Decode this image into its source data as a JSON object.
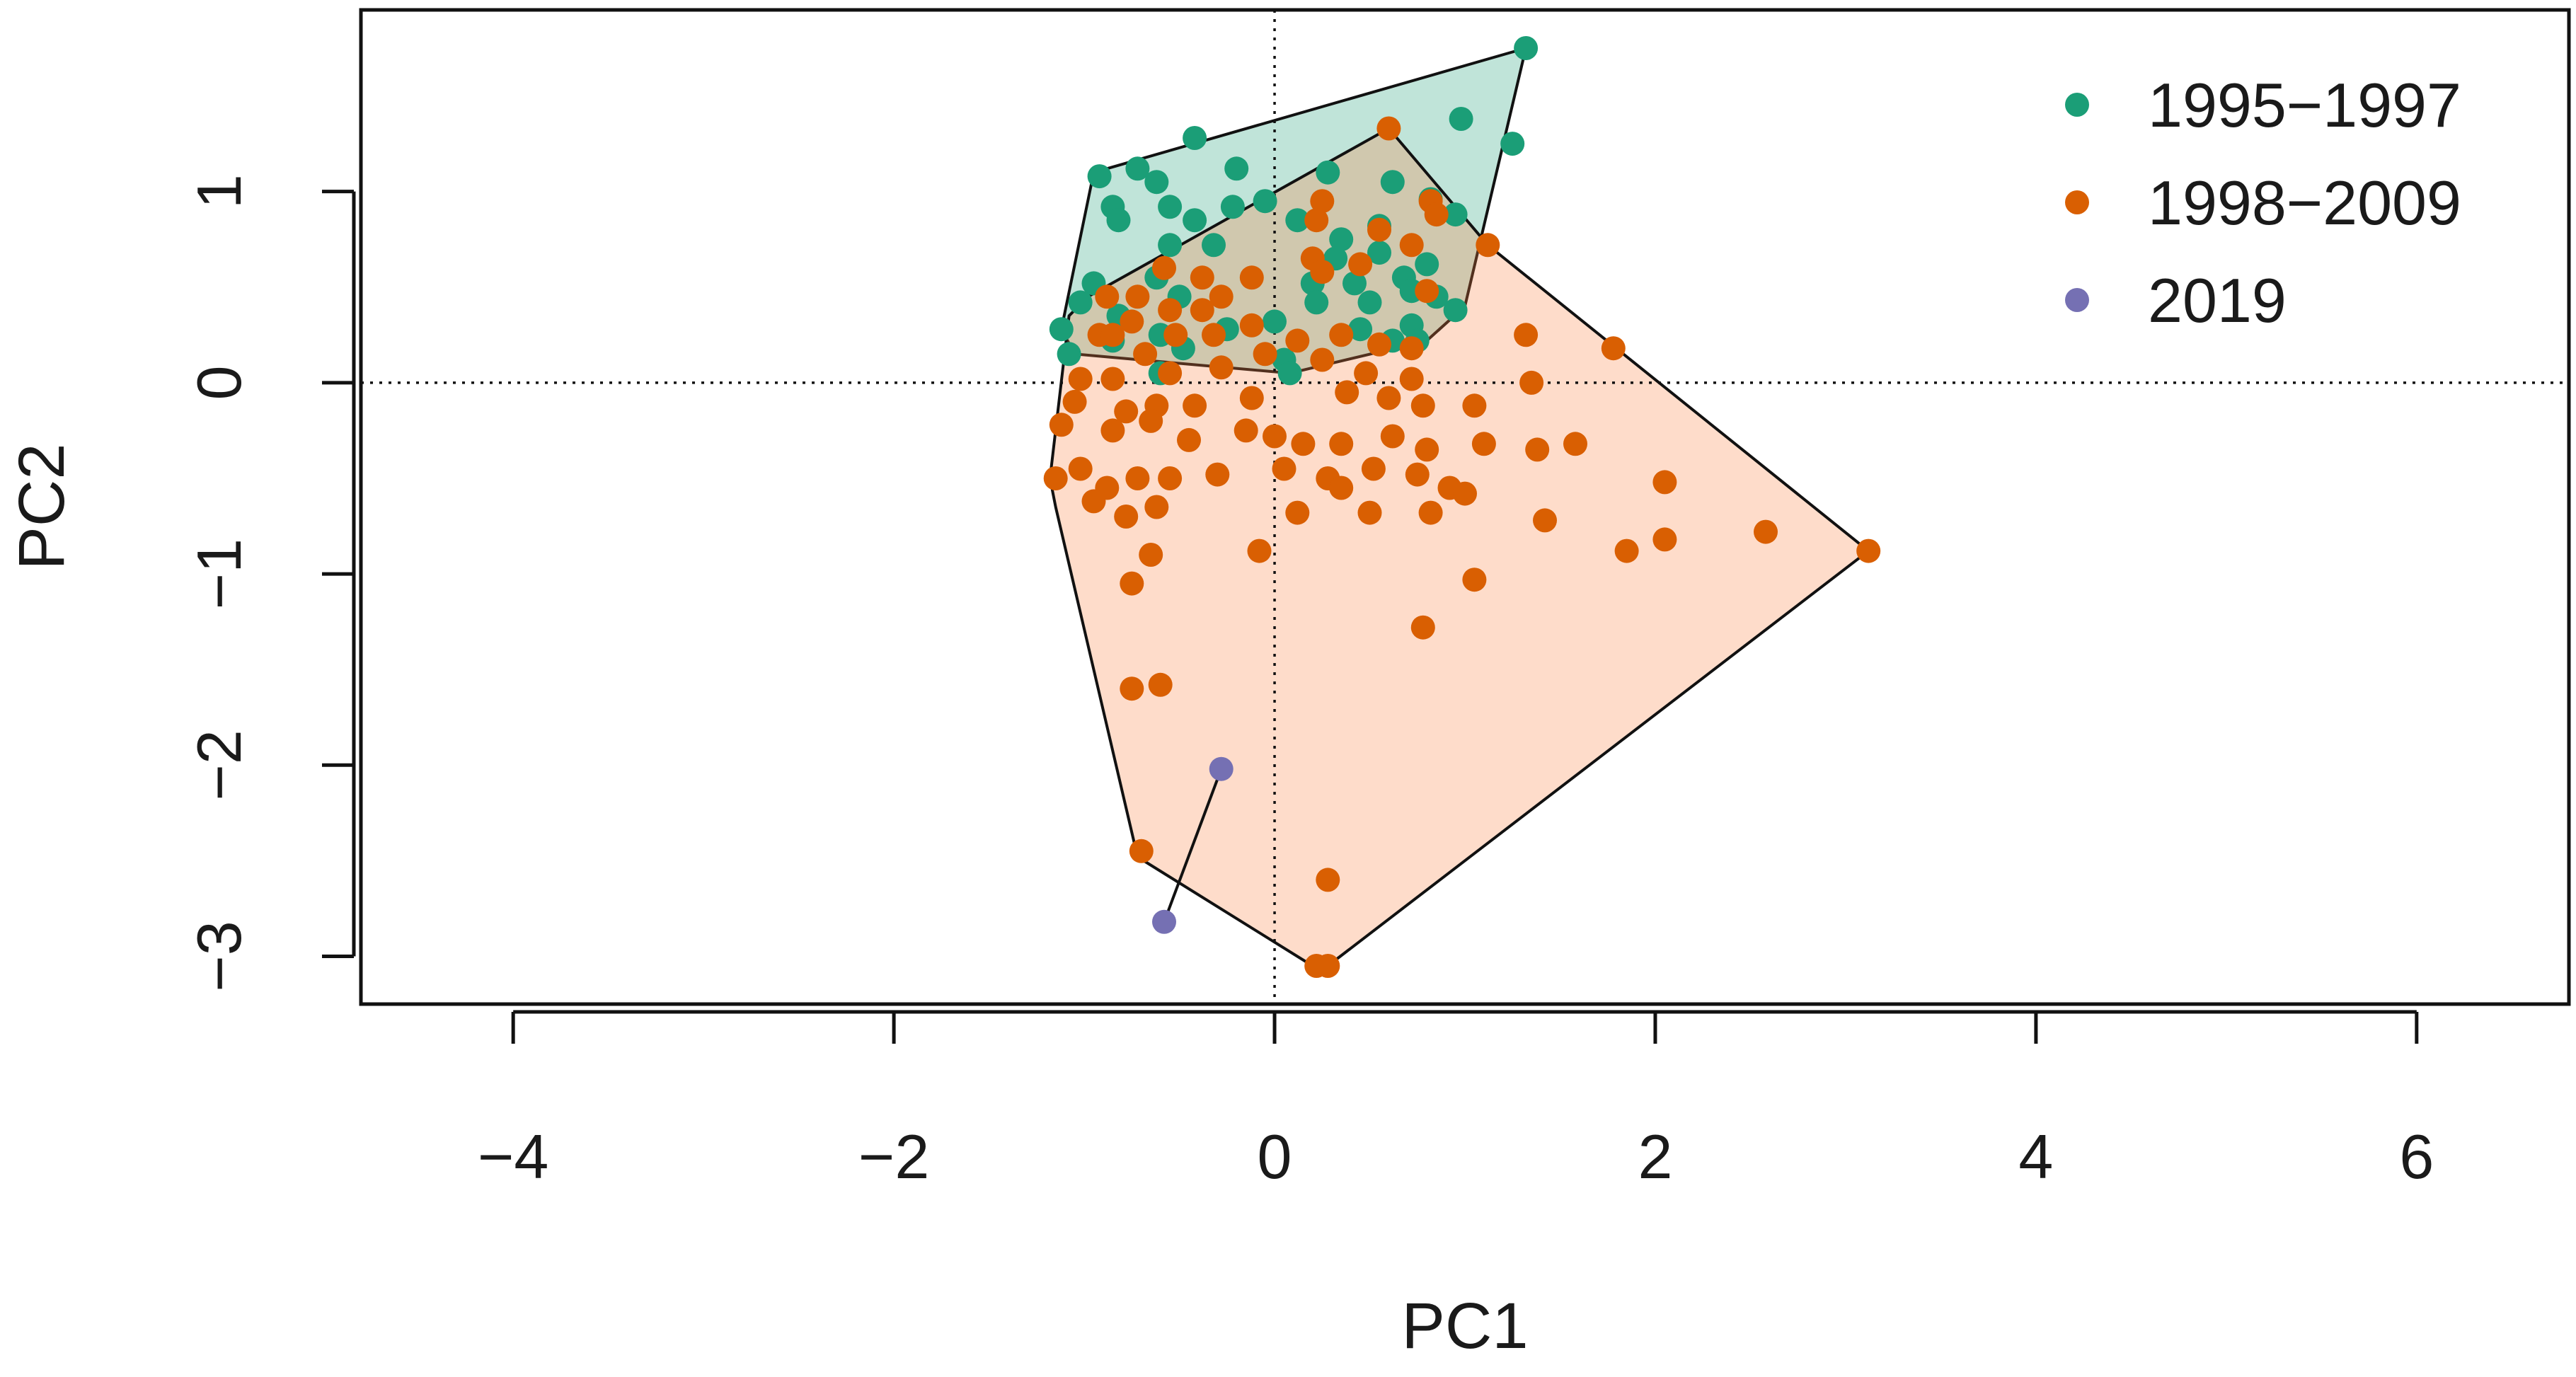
{
  "chart_data": {
    "type": "scatter",
    "title": "",
    "xlabel": "PC1",
    "ylabel": "PC2",
    "xlim": [
      -4.8,
      6.8
    ],
    "ylim": [
      -3.25,
      1.95
    ],
    "xticks": [
      -4,
      -2,
      0,
      2,
      4,
      6
    ],
    "yticks": [
      -3,
      -2,
      -1,
      0,
      1
    ],
    "x_tick_labels": [
      "−4",
      "−2",
      "0",
      "2",
      "4",
      "6"
    ],
    "y_tick_labels": [
      "−3",
      "−2",
      "−1",
      "0",
      "1"
    ],
    "reference_lines": {
      "x": 0,
      "y": 0
    },
    "legend_position": "top-right",
    "series": [
      {
        "name": "1995−1997",
        "color": "#1B9E77",
        "hull_fill": "rgba(27,158,119,0.28)",
        "points": [
          [
            1.32,
            1.75
          ],
          [
            1.25,
            1.25
          ],
          [
            0.98,
            1.38
          ],
          [
            -0.42,
            1.28
          ],
          [
            -0.92,
            1.08
          ],
          [
            -0.72,
            1.12
          ],
          [
            -0.62,
            1.05
          ],
          [
            -0.2,
            1.12
          ],
          [
            0.28,
            1.1
          ],
          [
            0.62,
            1.05
          ],
          [
            -0.55,
            0.92
          ],
          [
            -0.85,
            0.92
          ],
          [
            -0.82,
            0.85
          ],
          [
            -0.42,
            0.85
          ],
          [
            -0.22,
            0.92
          ],
          [
            -0.05,
            0.95
          ],
          [
            0.12,
            0.85
          ],
          [
            0.35,
            0.75
          ],
          [
            0.55,
            0.82
          ],
          [
            0.82,
            0.96
          ],
          [
            0.95,
            0.88
          ],
          [
            -0.55,
            0.72
          ],
          [
            -0.32,
            0.72
          ],
          [
            0.32,
            0.65
          ],
          [
            0.55,
            0.68
          ],
          [
            0.8,
            0.62
          ],
          [
            -0.95,
            0.52
          ],
          [
            -0.62,
            0.55
          ],
          [
            -0.5,
            0.45
          ],
          [
            0.2,
            0.52
          ],
          [
            0.42,
            0.52
          ],
          [
            0.68,
            0.55
          ],
          [
            -1.12,
            0.28
          ],
          [
            -1.02,
            0.42
          ],
          [
            -0.82,
            0.35
          ],
          [
            -0.6,
            0.25
          ],
          [
            -0.25,
            0.28
          ],
          [
            0.0,
            0.32
          ],
          [
            0.22,
            0.42
          ],
          [
            0.5,
            0.42
          ],
          [
            0.72,
            0.48
          ],
          [
            0.85,
            0.45
          ],
          [
            0.95,
            0.38
          ],
          [
            -1.08,
            0.15
          ],
          [
            -0.85,
            0.22
          ],
          [
            -0.48,
            0.18
          ],
          [
            0.05,
            0.12
          ],
          [
            0.45,
            0.28
          ],
          [
            0.62,
            0.22
          ],
          [
            0.72,
            0.3
          ],
          [
            0.75,
            0.22
          ],
          [
            0.08,
            0.05
          ],
          [
            -0.6,
            0.05
          ]
        ],
        "hull": [
          [
            1.32,
            1.75
          ],
          [
            -0.95,
            1.1
          ],
          [
            -1.12,
            0.28
          ],
          [
            -1.05,
            0.15
          ],
          [
            0.08,
            0.05
          ],
          [
            0.8,
            0.22
          ],
          [
            1.0,
            0.4
          ],
          [
            1.32,
            1.75
          ]
        ]
      },
      {
        "name": "1998−2009",
        "color": "#D95F02",
        "hull_fill": "rgba(250,128,64,0.28)",
        "points": [
          [
            0.6,
            1.33
          ],
          [
            1.12,
            0.72
          ],
          [
            0.82,
            0.95
          ],
          [
            0.85,
            0.88
          ],
          [
            0.25,
            0.95
          ],
          [
            0.22,
            0.85
          ],
          [
            0.55,
            0.8
          ],
          [
            0.72,
            0.72
          ],
          [
            0.2,
            0.65
          ],
          [
            0.45,
            0.62
          ],
          [
            0.8,
            0.48
          ],
          [
            -0.58,
            0.6
          ],
          [
            -0.38,
            0.55
          ],
          [
            -0.12,
            0.55
          ],
          [
            0.25,
            0.58
          ],
          [
            -0.88,
            0.45
          ],
          [
            -0.72,
            0.45
          ],
          [
            -0.55,
            0.38
          ],
          [
            -0.38,
            0.38
          ],
          [
            -0.28,
            0.45
          ],
          [
            -0.75,
            0.32
          ],
          [
            -0.52,
            0.25
          ],
          [
            -0.32,
            0.25
          ],
          [
            -0.12,
            0.3
          ],
          [
            -0.92,
            0.25
          ],
          [
            -0.85,
            0.25
          ],
          [
            -0.68,
            0.15
          ],
          [
            -0.05,
            0.15
          ],
          [
            0.12,
            0.22
          ],
          [
            0.35,
            0.25
          ],
          [
            0.55,
            0.2
          ],
          [
            0.72,
            0.18
          ],
          [
            1.32,
            0.25
          ],
          [
            1.78,
            0.18
          ],
          [
            -1.02,
            0.02
          ],
          [
            -0.85,
            0.02
          ],
          [
            -0.55,
            0.05
          ],
          [
            -0.28,
            0.08
          ],
          [
            0.25,
            0.12
          ],
          [
            0.48,
            0.05
          ],
          [
            0.72,
            0.02
          ],
          [
            -1.05,
            -0.1
          ],
          [
            -0.78,
            -0.15
          ],
          [
            -0.62,
            -0.12
          ],
          [
            -0.42,
            -0.12
          ],
          [
            -0.12,
            -0.08
          ],
          [
            0.38,
            -0.05
          ],
          [
            0.6,
            -0.08
          ],
          [
            0.78,
            -0.12
          ],
          [
            1.05,
            -0.12
          ],
          [
            1.35,
            0.0
          ],
          [
            -1.12,
            -0.22
          ],
          [
            -0.85,
            -0.25
          ],
          [
            -0.65,
            -0.2
          ],
          [
            -0.45,
            -0.3
          ],
          [
            -0.15,
            -0.25
          ],
          [
            0.0,
            -0.28
          ],
          [
            0.15,
            -0.32
          ],
          [
            0.35,
            -0.32
          ],
          [
            0.62,
            -0.28
          ],
          [
            0.8,
            -0.35
          ],
          [
            1.1,
            -0.32
          ],
          [
            1.58,
            -0.32
          ],
          [
            1.38,
            -0.35
          ],
          [
            -1.15,
            -0.5
          ],
          [
            -1.02,
            -0.45
          ],
          [
            -0.88,
            -0.55
          ],
          [
            -0.72,
            -0.5
          ],
          [
            -0.55,
            -0.5
          ],
          [
            -0.3,
            -0.48
          ],
          [
            0.05,
            -0.45
          ],
          [
            0.28,
            -0.5
          ],
          [
            0.52,
            -0.45
          ],
          [
            0.75,
            -0.48
          ],
          [
            0.92,
            -0.55
          ],
          [
            -0.95,
            -0.62
          ],
          [
            -0.78,
            -0.7
          ],
          [
            -0.62,
            -0.65
          ],
          [
            0.12,
            -0.68
          ],
          [
            0.35,
            -0.55
          ],
          [
            0.5,
            -0.68
          ],
          [
            0.82,
            -0.68
          ],
          [
            1.0,
            -0.58
          ],
          [
            1.42,
            -0.72
          ],
          [
            2.05,
            -0.52
          ],
          [
            -0.65,
            -0.9
          ],
          [
            -0.75,
            -1.05
          ],
          [
            -0.08,
            -0.88
          ],
          [
            1.85,
            -0.88
          ],
          [
            2.05,
            -0.82
          ],
          [
            2.58,
            -0.78
          ],
          [
            3.12,
            -0.88
          ],
          [
            1.05,
            -1.03
          ],
          [
            0.78,
            -1.28
          ],
          [
            -0.75,
            -1.6
          ],
          [
            -0.6,
            -1.58
          ],
          [
            -0.7,
            -2.45
          ],
          [
            0.28,
            -2.6
          ],
          [
            0.22,
            -3.05
          ],
          [
            0.28,
            -3.05
          ]
        ],
        "hull": [
          [
            0.6,
            1.33
          ],
          [
            1.12,
            0.72
          ],
          [
            3.12,
            -0.88
          ],
          [
            0.28,
            -3.05
          ],
          [
            0.2,
            -3.05
          ],
          [
            -0.72,
            -2.48
          ],
          [
            -1.15,
            -0.65
          ],
          [
            -1.18,
            -0.5
          ],
          [
            -1.08,
            0.35
          ],
          [
            -0.98,
            0.45
          ],
          [
            0.6,
            1.33
          ]
        ]
      },
      {
        "name": "2019",
        "color": "#7570B3",
        "hull_fill": "none",
        "points": [
          [
            -0.28,
            -2.02
          ],
          [
            -0.58,
            -2.82
          ]
        ],
        "hull": [
          [
            -0.28,
            -2.02
          ],
          [
            -0.58,
            -2.82
          ]
        ]
      }
    ]
  }
}
